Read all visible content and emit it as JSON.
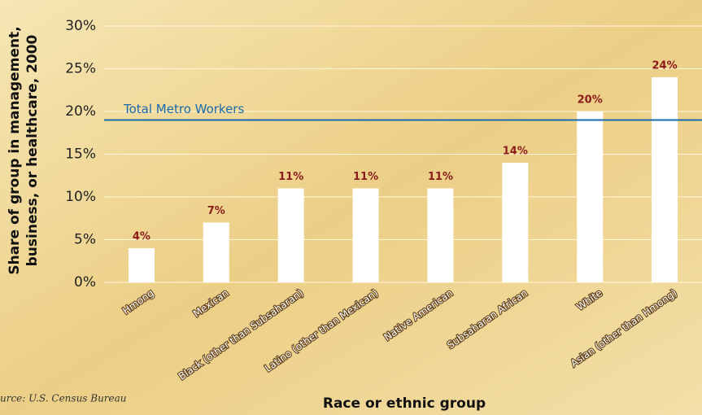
{
  "chart_data": {
    "type": "bar",
    "y_label_lines": [
      "Share of group in management,",
      "business, or healthcare, 2000"
    ],
    "x_label": "Race or ethnic group",
    "source": "urce: U.S. Census Bureau",
    "categories": [
      "Hmong",
      "Mexican",
      "Black (other than Subsaharan)",
      "Latino (other than Mexican)",
      "Native American",
      "Subsaharan African",
      "White",
      "Asian (other than Hmong)"
    ],
    "values": [
      4,
      7,
      11,
      11,
      11,
      14,
      20,
      24
    ],
    "value_labels": [
      "4%",
      "7%",
      "11%",
      "11%",
      "11%",
      "14%",
      "20%",
      "24%"
    ],
    "color": "#ffffff",
    "reference_line": {
      "label": "Total Metro Workers",
      "value": 19,
      "color": "#1a6aab"
    },
    "ylim": [
      0,
      30
    ],
    "yticks": [
      {
        "value": 0,
        "label": "0%"
      },
      {
        "value": 5,
        "label": "5%"
      },
      {
        "value": 10,
        "label": "10%"
      },
      {
        "value": 15,
        "label": "15%"
      },
      {
        "value": 20,
        "label": "20%"
      },
      {
        "value": 25,
        "label": "25%"
      },
      {
        "value": 30,
        "label": "30%"
      }
    ],
    "grid": true
  }
}
